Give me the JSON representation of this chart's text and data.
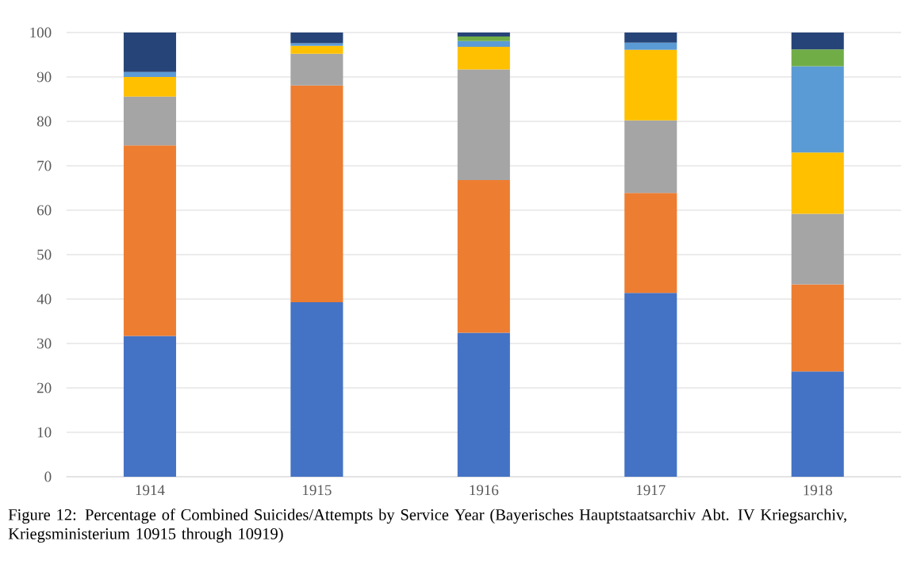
{
  "chart_data": {
    "type": "bar",
    "stacked": true,
    "categories": [
      "1914",
      "1915",
      "1916",
      "1917",
      "1918"
    ],
    "series": [
      {
        "color": "#4472c4",
        "values": [
          31.7,
          39.3,
          32.4,
          41.4,
          23.7
        ]
      },
      {
        "color": "#ed7d31",
        "values": [
          42.9,
          48.8,
          34.4,
          22.5,
          19.6
        ]
      },
      {
        "color": "#a5a5a5",
        "values": [
          11.0,
          7.1,
          24.9,
          16.3,
          15.9
        ]
      },
      {
        "color": "#ffc000",
        "values": [
          4.4,
          1.8,
          5.1,
          15.9,
          13.8
        ]
      },
      {
        "color": "#5b9bd5",
        "values": [
          1.1,
          0.6,
          1.3,
          1.6,
          19.4
        ]
      },
      {
        "color": "#70ad47",
        "values": [
          null,
          null,
          1.0,
          null,
          3.8
        ]
      },
      {
        "color": "#264478",
        "values": [
          8.9,
          2.4,
          0.9,
          2.3,
          3.8
        ]
      }
    ],
    "ylim": [
      0,
      100
    ],
    "yticks": [
      0,
      10,
      20,
      30,
      40,
      50,
      60,
      70,
      80,
      90,
      100
    ],
    "grid": "y",
    "annotations": [
      "Figure 12: Percentage of Combined Suicides/Attempts by Service Year (Bayerisches Hauptstaatsarchiv Abt. IV Kriegsarchiv, Kriegsministerium 10915 through 10919)"
    ]
  }
}
